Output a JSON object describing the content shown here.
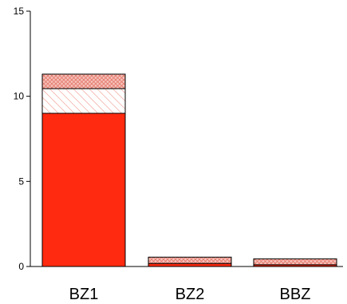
{
  "chart_data": {
    "type": "bar",
    "stacked": true,
    "categories": [
      "BZ1",
      "BZ2",
      "BBZ"
    ],
    "series": [
      {
        "values": [
          9.0,
          0.18,
          0.1
        ],
        "color": "#ff2a0f",
        "pattern": "solid"
      },
      {
        "values": [
          1.45,
          0.0,
          0.0
        ],
        "color": "#f2a49a",
        "pattern": "diagonal-hatch"
      },
      {
        "values": [
          0.85,
          0.37,
          0.35
        ],
        "color": "#f2a49a",
        "pattern": "cross-hatch"
      }
    ],
    "ylim": [
      0,
      15
    ],
    "yticks": [
      0,
      5,
      10,
      15
    ],
    "title": "",
    "xlabel": "",
    "ylabel": "",
    "grid": false,
    "legend": false
  }
}
